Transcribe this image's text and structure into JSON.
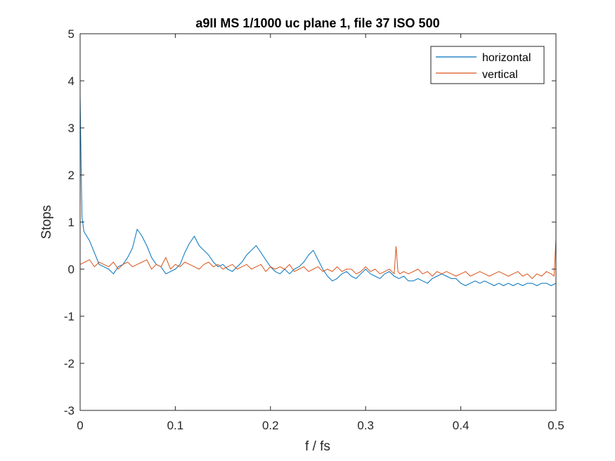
{
  "chart_data": {
    "type": "line",
    "title": "a9II MS 1/1000 uc plane 1, file 37 ISO 500",
    "xlabel": "f / fs",
    "ylabel": "Stops",
    "xlim": [
      0,
      0.5
    ],
    "ylim": [
      -3,
      5
    ],
    "xticks": [
      0,
      0.1,
      0.2,
      0.3,
      0.4,
      0.5
    ],
    "xtick_labels": [
      "0",
      "0.1",
      "0.2",
      "0.3",
      "0.4",
      "0.5"
    ],
    "yticks": [
      -3,
      -2,
      -1,
      0,
      1,
      2,
      3,
      4,
      5
    ],
    "ytick_labels": [
      "-3",
      "-2",
      "-1",
      "0",
      "1",
      "2",
      "3",
      "4",
      "5"
    ],
    "grid": false,
    "legend_position": "top-right",
    "series": [
      {
        "name": "horizontal",
        "color": "#0072BD",
        "x": [
          0,
          0.001,
          0.002,
          0.004,
          0.007,
          0.01,
          0.013,
          0.016,
          0.02,
          0.025,
          0.03,
          0.035,
          0.04,
          0.045,
          0.05,
          0.055,
          0.06,
          0.065,
          0.07,
          0.075,
          0.08,
          0.085,
          0.09,
          0.095,
          0.1,
          0.105,
          0.11,
          0.115,
          0.12,
          0.125,
          0.13,
          0.135,
          0.14,
          0.145,
          0.15,
          0.155,
          0.16,
          0.165,
          0.17,
          0.175,
          0.18,
          0.185,
          0.19,
          0.195,
          0.2,
          0.205,
          0.21,
          0.215,
          0.22,
          0.225,
          0.23,
          0.235,
          0.24,
          0.245,
          0.25,
          0.255,
          0.26,
          0.265,
          0.27,
          0.275,
          0.28,
          0.285,
          0.29,
          0.295,
          0.3,
          0.305,
          0.31,
          0.315,
          0.32,
          0.325,
          0.33,
          0.335,
          0.34,
          0.345,
          0.35,
          0.355,
          0.36,
          0.365,
          0.37,
          0.375,
          0.38,
          0.385,
          0.39,
          0.395,
          0.4,
          0.405,
          0.41,
          0.415,
          0.42,
          0.425,
          0.43,
          0.435,
          0.44,
          0.445,
          0.45,
          0.455,
          0.46,
          0.465,
          0.47,
          0.475,
          0.48,
          0.485,
          0.49,
          0.495,
          0.5
        ],
        "y": [
          3.7,
          2.2,
          1.1,
          0.8,
          0.7,
          0.6,
          0.45,
          0.3,
          0.1,
          0.05,
          0.0,
          -0.1,
          0.05,
          0.1,
          0.25,
          0.45,
          0.85,
          0.7,
          0.5,
          0.25,
          0.1,
          0.05,
          -0.1,
          -0.05,
          0.0,
          0.1,
          0.35,
          0.55,
          0.7,
          0.5,
          0.4,
          0.3,
          0.15,
          0.05,
          0.1,
          0.0,
          -0.05,
          0.05,
          0.15,
          0.3,
          0.4,
          0.5,
          0.35,
          0.2,
          0.05,
          -0.05,
          -0.1,
          0.0,
          -0.1,
          0.0,
          0.05,
          0.15,
          0.3,
          0.4,
          0.2,
          0.0,
          -0.15,
          -0.25,
          -0.2,
          -0.1,
          -0.05,
          -0.15,
          -0.2,
          -0.1,
          0.0,
          -0.1,
          -0.15,
          -0.2,
          -0.1,
          -0.05,
          -0.15,
          -0.2,
          -0.15,
          -0.25,
          -0.25,
          -0.2,
          -0.25,
          -0.3,
          -0.2,
          -0.15,
          -0.1,
          -0.15,
          -0.2,
          -0.2,
          -0.3,
          -0.35,
          -0.3,
          -0.25,
          -0.3,
          -0.25,
          -0.3,
          -0.35,
          -0.3,
          -0.35,
          -0.3,
          -0.35,
          -0.3,
          -0.35,
          -0.3,
          -0.3,
          -0.35,
          -0.3,
          -0.3,
          -0.35,
          -0.3
        ]
      },
      {
        "name": "vertical",
        "color": "#D95319",
        "x": [
          0,
          0.005,
          0.01,
          0.015,
          0.02,
          0.025,
          0.03,
          0.035,
          0.04,
          0.045,
          0.05,
          0.055,
          0.06,
          0.065,
          0.07,
          0.075,
          0.08,
          0.085,
          0.09,
          0.095,
          0.1,
          0.105,
          0.11,
          0.115,
          0.12,
          0.125,
          0.13,
          0.135,
          0.14,
          0.145,
          0.15,
          0.155,
          0.16,
          0.165,
          0.17,
          0.175,
          0.18,
          0.185,
          0.19,
          0.195,
          0.2,
          0.205,
          0.21,
          0.215,
          0.22,
          0.225,
          0.23,
          0.235,
          0.24,
          0.245,
          0.25,
          0.255,
          0.26,
          0.265,
          0.27,
          0.275,
          0.28,
          0.285,
          0.29,
          0.295,
          0.3,
          0.305,
          0.31,
          0.315,
          0.32,
          0.325,
          0.33,
          0.332,
          0.334,
          0.336,
          0.34,
          0.345,
          0.35,
          0.355,
          0.36,
          0.365,
          0.37,
          0.375,
          0.38,
          0.385,
          0.39,
          0.395,
          0.4,
          0.405,
          0.41,
          0.415,
          0.42,
          0.425,
          0.43,
          0.435,
          0.44,
          0.445,
          0.45,
          0.455,
          0.46,
          0.465,
          0.47,
          0.475,
          0.48,
          0.485,
          0.49,
          0.495,
          0.498,
          0.5
        ],
        "y": [
          0.1,
          0.15,
          0.2,
          0.05,
          0.15,
          0.1,
          0.05,
          0.15,
          0.0,
          0.1,
          0.15,
          0.05,
          0.1,
          0.15,
          0.2,
          0.0,
          0.1,
          0.05,
          0.25,
          0.0,
          0.1,
          0.05,
          0.15,
          0.1,
          0.05,
          0.0,
          0.1,
          0.15,
          0.05,
          0.1,
          0.0,
          0.05,
          0.1,
          0.0,
          0.05,
          0.1,
          0.0,
          0.05,
          0.1,
          -0.05,
          0.05,
          0.0,
          0.05,
          0.0,
          0.1,
          -0.05,
          0.0,
          0.05,
          -0.05,
          0.0,
          0.05,
          -0.05,
          0.0,
          -0.05,
          0.05,
          -0.05,
          0.0,
          0.0,
          -0.1,
          -0.05,
          0.05,
          -0.05,
          0.0,
          -0.1,
          -0.05,
          0.0,
          -0.1,
          0.48,
          -0.05,
          -0.1,
          -0.05,
          -0.1,
          -0.05,
          0.0,
          -0.1,
          -0.05,
          -0.15,
          -0.05,
          -0.1,
          -0.05,
          -0.1,
          -0.15,
          -0.1,
          -0.05,
          -0.15,
          -0.1,
          -0.05,
          -0.1,
          -0.15,
          -0.1,
          -0.05,
          -0.1,
          -0.15,
          -0.1,
          -0.05,
          -0.15,
          -0.1,
          -0.2,
          -0.1,
          -0.15,
          -0.05,
          -0.1,
          -0.15,
          0.65
        ]
      }
    ]
  }
}
